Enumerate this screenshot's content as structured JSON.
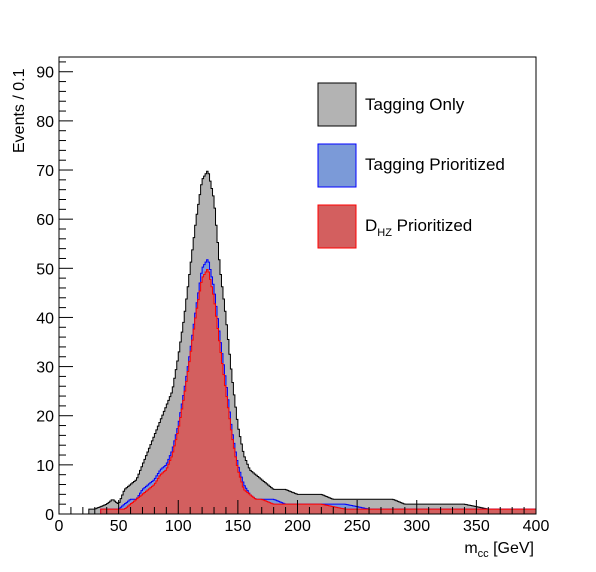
{
  "chart_data": {
    "type": "histogram",
    "xlabel_main": "m",
    "xlabel_sub": "cc",
    "xlabel_unit": " [GeV]",
    "ylabel": "Events / 0.1",
    "xlim": [
      0,
      400
    ],
    "ylim": [
      0,
      93
    ],
    "xticks": [
      0,
      50,
      100,
      150,
      200,
      250,
      300,
      350,
      400
    ],
    "yticks": [
      0,
      10,
      20,
      30,
      40,
      50,
      60,
      70,
      80,
      90
    ],
    "legend_position": "top-right",
    "series": [
      {
        "name": "Tagging Only",
        "fill": "#b3b3b3",
        "stroke": "#000000",
        "points": [
          [
            30,
            1
          ],
          [
            40,
            2
          ],
          [
            45,
            3
          ],
          [
            50,
            2
          ],
          [
            55,
            5
          ],
          [
            60,
            6
          ],
          [
            65,
            7
          ],
          [
            70,
            10
          ],
          [
            75,
            13
          ],
          [
            80,
            16
          ],
          [
            85,
            19
          ],
          [
            90,
            22
          ],
          [
            95,
            25
          ],
          [
            100,
            32
          ],
          [
            105,
            40
          ],
          [
            110,
            50
          ],
          [
            115,
            60
          ],
          [
            120,
            68
          ],
          [
            125,
            70
          ],
          [
            130,
            64
          ],
          [
            135,
            50
          ],
          [
            140,
            40
          ],
          [
            145,
            28
          ],
          [
            150,
            18
          ],
          [
            155,
            12
          ],
          [
            160,
            9
          ],
          [
            165,
            8
          ],
          [
            170,
            7
          ],
          [
            175,
            6
          ],
          [
            180,
            5
          ],
          [
            190,
            5
          ],
          [
            200,
            4
          ],
          [
            210,
            4
          ],
          [
            220,
            4
          ],
          [
            230,
            3
          ],
          [
            240,
            3
          ],
          [
            250,
            3
          ],
          [
            260,
            3
          ],
          [
            270,
            3
          ],
          [
            280,
            3
          ],
          [
            290,
            2
          ],
          [
            300,
            2
          ],
          [
            320,
            2
          ],
          [
            340,
            2
          ],
          [
            360,
            1
          ],
          [
            380,
            1
          ],
          [
            400,
            1
          ]
        ]
      },
      {
        "name": "Tagging Prioritized",
        "fill": "#7b9ad8",
        "stroke": "#0000ff",
        "points": [
          [
            40,
            1
          ],
          [
            50,
            1
          ],
          [
            55,
            2
          ],
          [
            60,
            3
          ],
          [
            65,
            3
          ],
          [
            70,
            5
          ],
          [
            75,
            6
          ],
          [
            80,
            7
          ],
          [
            85,
            9
          ],
          [
            90,
            10
          ],
          [
            95,
            13
          ],
          [
            100,
            18
          ],
          [
            105,
            25
          ],
          [
            110,
            33
          ],
          [
            115,
            42
          ],
          [
            120,
            50
          ],
          [
            125,
            52
          ],
          [
            130,
            46
          ],
          [
            135,
            36
          ],
          [
            140,
            27
          ],
          [
            145,
            17
          ],
          [
            150,
            10
          ],
          [
            155,
            6
          ],
          [
            160,
            4
          ],
          [
            165,
            3
          ],
          [
            170,
            3
          ],
          [
            180,
            3
          ],
          [
            190,
            2
          ],
          [
            200,
            2
          ],
          [
            220,
            2
          ],
          [
            240,
            2
          ],
          [
            260,
            1
          ],
          [
            280,
            1
          ],
          [
            300,
            1
          ],
          [
            350,
            1
          ],
          [
            400,
            1
          ]
        ]
      },
      {
        "name_main": "D",
        "name_sub": "HZ",
        "name_tail": " Prioritized",
        "fill": "#d35f5f",
        "stroke": "#ff0000",
        "points": [
          [
            40,
            1
          ],
          [
            50,
            1
          ],
          [
            55,
            1
          ],
          [
            60,
            2
          ],
          [
            65,
            3
          ],
          [
            70,
            4
          ],
          [
            75,
            5
          ],
          [
            80,
            6
          ],
          [
            85,
            8
          ],
          [
            90,
            9
          ],
          [
            95,
            12
          ],
          [
            100,
            17
          ],
          [
            105,
            24
          ],
          [
            110,
            32
          ],
          [
            115,
            41
          ],
          [
            120,
            48
          ],
          [
            125,
            50
          ],
          [
            130,
            44
          ],
          [
            135,
            34
          ],
          [
            140,
            25
          ],
          [
            145,
            16
          ],
          [
            150,
            9
          ],
          [
            155,
            5
          ],
          [
            160,
            4
          ],
          [
            165,
            3
          ],
          [
            170,
            3
          ],
          [
            180,
            2
          ],
          [
            190,
            2
          ],
          [
            200,
            2
          ],
          [
            220,
            2
          ],
          [
            240,
            1
          ],
          [
            260,
            1
          ],
          [
            280,
            1
          ],
          [
            300,
            1
          ],
          [
            350,
            1
          ],
          [
            400,
            1
          ]
        ]
      }
    ]
  }
}
